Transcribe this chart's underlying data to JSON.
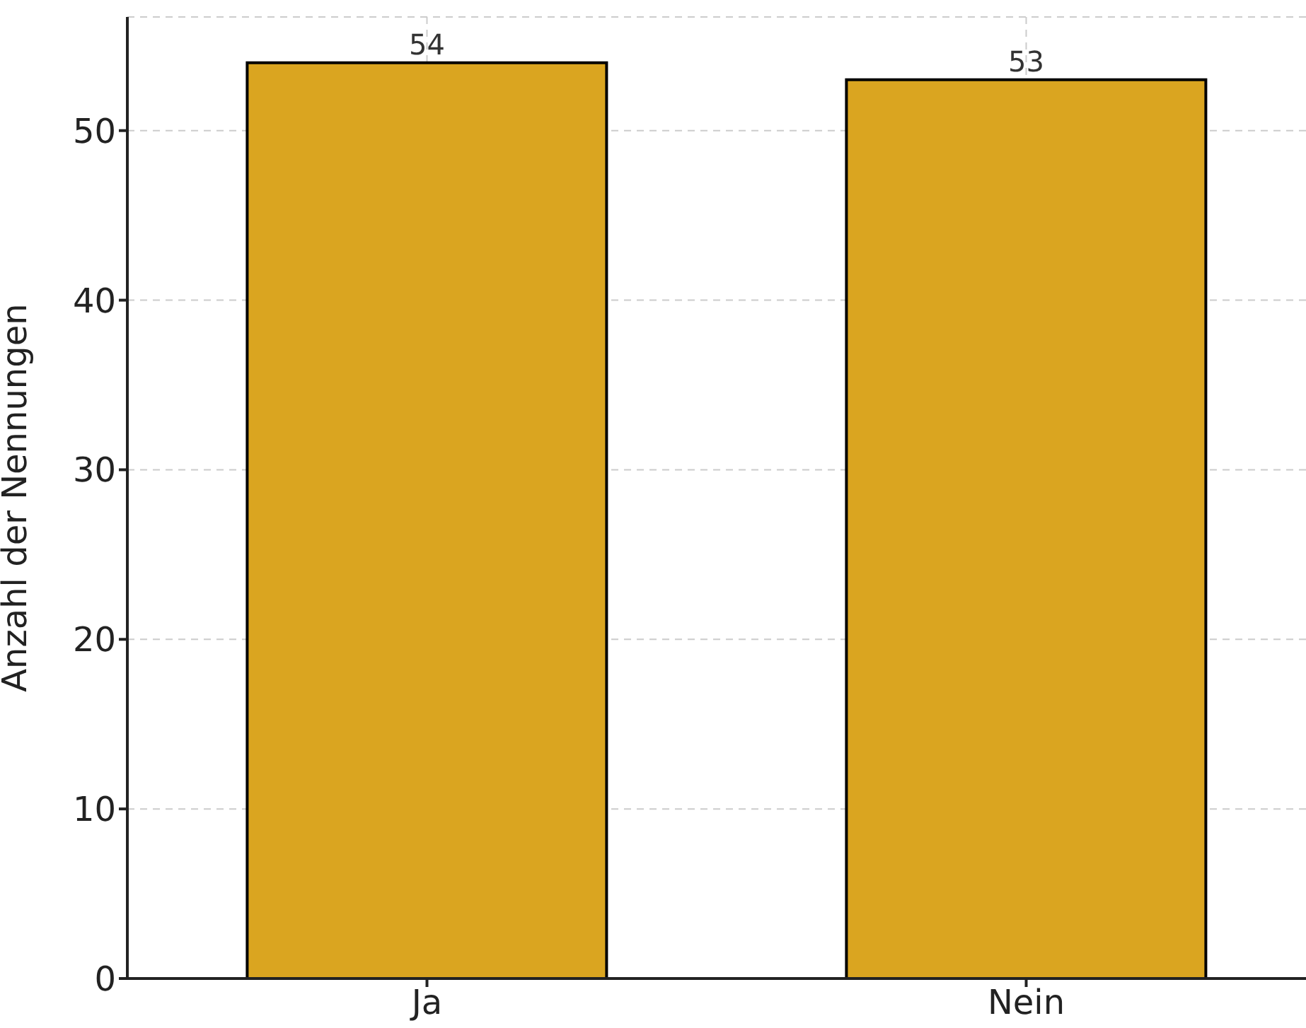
{
  "chart_data": {
    "type": "bar",
    "ylabel": "Anzahl der Nennungen",
    "categories": [
      "Ja",
      "Nein"
    ],
    "values": [
      54,
      53
    ],
    "color": "#daa520",
    "ylim": [
      0,
      56.7
    ],
    "yticks": [
      0,
      10,
      20,
      30,
      40,
      50
    ],
    "grid": true,
    "data_labels": true
  }
}
